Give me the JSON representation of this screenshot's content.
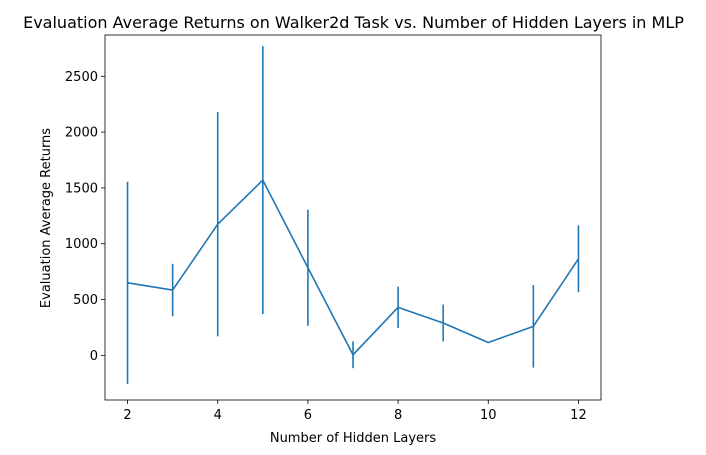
{
  "chart_data": {
    "type": "line",
    "title": "Evaluation Average Returns on Walker2d Task vs. Number of Hidden Layers in MLP",
    "xlabel": "Number of Hidden Layers",
    "ylabel": "Evaluation Average Returns",
    "xlim": [
      1.5,
      12.5
    ],
    "ylim": [
      -400,
      2870
    ],
    "xticks": [
      2,
      4,
      6,
      8,
      10,
      12
    ],
    "yticks": [
      0,
      500,
      1000,
      1500,
      2000,
      2500
    ],
    "grid": false,
    "color": "#1f77b4",
    "series": [
      {
        "x": [
          2,
          3,
          4,
          5,
          6,
          7,
          8,
          9,
          10,
          11,
          12
        ],
        "y": [
          650,
          585,
          1175,
          1570,
          785,
          5,
          430,
          290,
          115,
          260,
          865
        ],
        "yerr": [
          905,
          235,
          1005,
          1200,
          520,
          120,
          185,
          165,
          0,
          370,
          300
        ]
      }
    ]
  }
}
